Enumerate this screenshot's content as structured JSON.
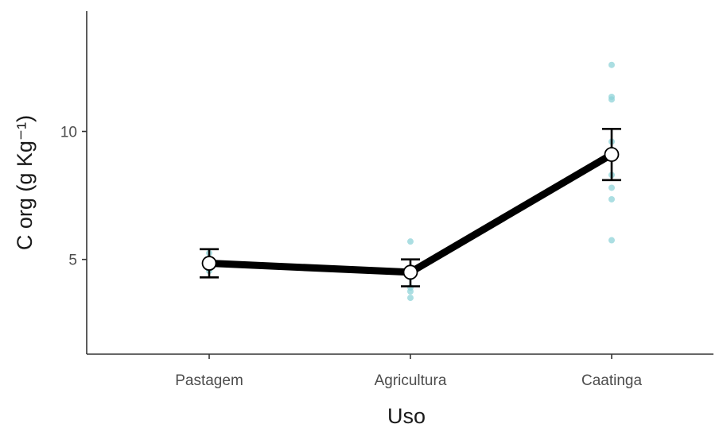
{
  "chart_data": {
    "type": "line",
    "title": "",
    "xlabel": "Uso",
    "ylabel": "C org (g Kg⁻¹)",
    "categories": [
      "Pastagem",
      "Agricultura",
      "Caatinga"
    ],
    "yticks": [
      5,
      10
    ],
    "ylim": [
      1.3,
      14.7
    ],
    "grid": false,
    "legend": "none",
    "series": [
      {
        "values": [
          4.85,
          4.5,
          9.1
        ],
        "error_low": [
          4.3,
          3.95,
          8.1
        ],
        "error_high": [
          5.4,
          5.0,
          10.1
        ]
      }
    ],
    "raw_points": [
      [
        4.55,
        4.95,
        5.25
      ],
      [
        3.5,
        3.75,
        3.9,
        4.3,
        5.7
      ],
      [
        5.75,
        7.35,
        7.8,
        8.3,
        9.6,
        11.25,
        11.35,
        12.6
      ]
    ],
    "colors": {
      "mean_line": "#000000",
      "raw_points": "#8fd3d8",
      "mean_marker_fill": "#ffffff"
    }
  }
}
